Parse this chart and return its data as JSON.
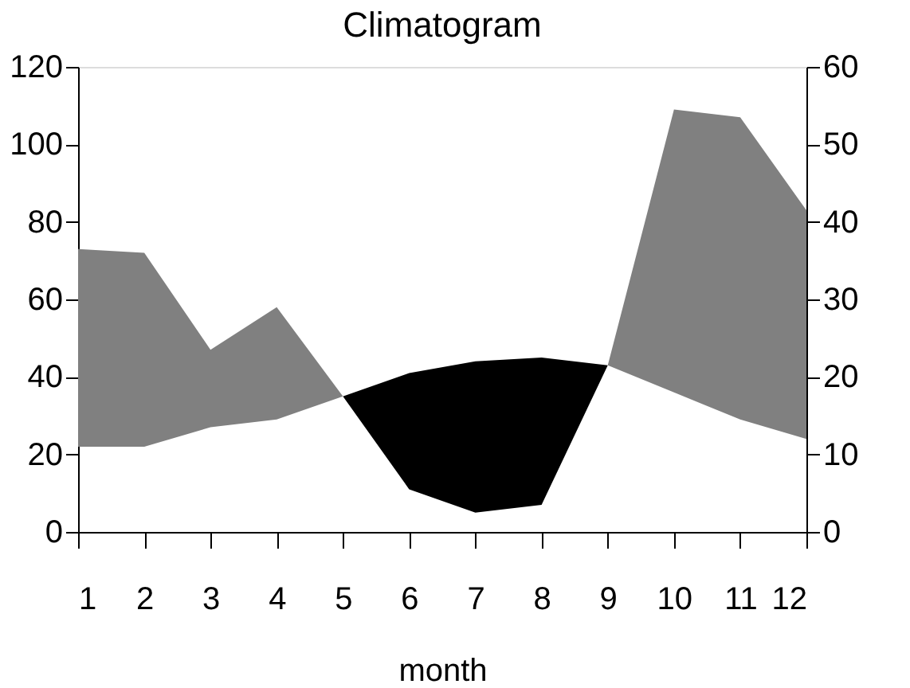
{
  "chart_data": {
    "type": "area",
    "title": "Climatogram",
    "xlabel": "month",
    "x": [
      1,
      2,
      3,
      4,
      5,
      6,
      7,
      8,
      9,
      10,
      11,
      12
    ],
    "xlim": [
      1,
      12
    ],
    "xticks": [
      1,
      2,
      3,
      4,
      5,
      6,
      7,
      8,
      9,
      10,
      11,
      12
    ],
    "ylim": [
      0,
      120
    ],
    "yticks": [
      0,
      20,
      40,
      60,
      80,
      100,
      120
    ],
    "y2lim": [
      0,
      60
    ],
    "y2ticks": [
      0,
      10,
      20,
      30,
      40,
      50,
      60
    ],
    "series": [
      {
        "color": "#808080",
        "values": [
          73,
          72,
          47,
          58,
          35,
          11,
          5,
          7,
          43,
          109,
          107,
          83
        ]
      },
      {
        "color": "#000000",
        "axis": "y2",
        "values": [
          11,
          11,
          13.5,
          14.5,
          17.5,
          20.5,
          22,
          22.5,
          21.5,
          18,
          14.5,
          12
        ]
      }
    ],
    "grid": false
  }
}
